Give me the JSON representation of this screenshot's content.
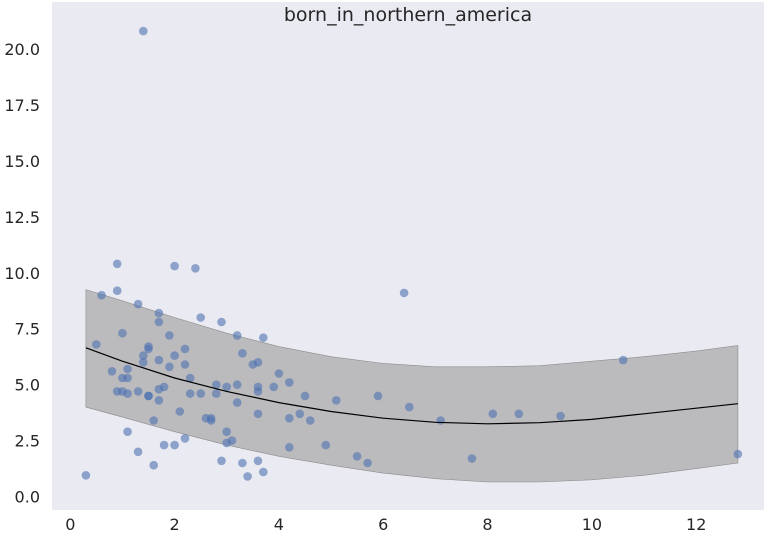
{
  "chart_data": {
    "type": "scatter",
    "title": "born_in_northern_america",
    "xlabel": "",
    "ylabel": "",
    "xlim": [
      -0.35,
      13.3
    ],
    "ylim": [
      -0.6,
      22.1
    ],
    "xticks": [
      0,
      2,
      4,
      6,
      8,
      10,
      12
    ],
    "xtick_labels": [
      "0",
      "2",
      "4",
      "6",
      "8",
      "10",
      "12"
    ],
    "yticks": [
      0.0,
      2.5,
      5.0,
      7.5,
      10.0,
      12.5,
      15.0,
      17.5,
      20.0
    ],
    "ytick_labels": [
      "0.0",
      "2.5",
      "5.0",
      "7.5",
      "10.0",
      "12.5",
      "15.0",
      "17.5",
      "20.0"
    ],
    "grid": false,
    "colors": {
      "background": "#eaeaf2",
      "points": "#4c72b0",
      "band": "#a9a9a9",
      "line": "#000000"
    },
    "points": [
      [
        0.3,
        0.95
      ],
      [
        0.5,
        6.8
      ],
      [
        0.6,
        9.0
      ],
      [
        0.8,
        5.6
      ],
      [
        0.9,
        9.2
      ],
      [
        0.9,
        10.4
      ],
      [
        0.9,
        4.7
      ],
      [
        1.0,
        7.3
      ],
      [
        1.0,
        5.3
      ],
      [
        1.0,
        4.7
      ],
      [
        1.1,
        5.3
      ],
      [
        1.1,
        4.6
      ],
      [
        1.1,
        5.7
      ],
      [
        1.1,
        2.9
      ],
      [
        1.3,
        8.6
      ],
      [
        1.3,
        4.7
      ],
      [
        1.3,
        2.0
      ],
      [
        1.4,
        20.8
      ],
      [
        1.4,
        6.3
      ],
      [
        1.4,
        6.0
      ],
      [
        1.5,
        6.6
      ],
      [
        1.5,
        6.7
      ],
      [
        1.5,
        4.5
      ],
      [
        1.5,
        4.5
      ],
      [
        1.6,
        3.4
      ],
      [
        1.6,
        1.4
      ],
      [
        1.7,
        8.2
      ],
      [
        1.7,
        7.8
      ],
      [
        1.7,
        6.1
      ],
      [
        1.7,
        4.8
      ],
      [
        1.7,
        4.3
      ],
      [
        1.8,
        4.9
      ],
      [
        1.8,
        2.3
      ],
      [
        1.9,
        7.2
      ],
      [
        1.9,
        5.8
      ],
      [
        2.0,
        10.3
      ],
      [
        2.0,
        6.3
      ],
      [
        2.0,
        2.3
      ],
      [
        2.1,
        3.8
      ],
      [
        2.2,
        6.6
      ],
      [
        2.2,
        5.9
      ],
      [
        2.2,
        2.6
      ],
      [
        2.3,
        5.3
      ],
      [
        2.3,
        4.6
      ],
      [
        2.4,
        10.2
      ],
      [
        2.5,
        8.0
      ],
      [
        2.5,
        4.6
      ],
      [
        2.6,
        3.5
      ],
      [
        2.7,
        3.4
      ],
      [
        2.7,
        3.5
      ],
      [
        2.8,
        5.0
      ],
      [
        2.8,
        4.6
      ],
      [
        2.9,
        7.8
      ],
      [
        2.9,
        1.6
      ],
      [
        3.0,
        4.9
      ],
      [
        3.0,
        2.9
      ],
      [
        3.0,
        2.4
      ],
      [
        3.1,
        2.5
      ],
      [
        3.2,
        7.2
      ],
      [
        3.2,
        5.0
      ],
      [
        3.2,
        4.2
      ],
      [
        3.3,
        6.4
      ],
      [
        3.3,
        1.5
      ],
      [
        3.4,
        0.9
      ],
      [
        3.5,
        5.9
      ],
      [
        3.6,
        6.0
      ],
      [
        3.6,
        4.9
      ],
      [
        3.6,
        4.7
      ],
      [
        3.6,
        3.7
      ],
      [
        3.6,
        1.6
      ],
      [
        3.7,
        7.1
      ],
      [
        3.7,
        1.1
      ],
      [
        3.9,
        4.9
      ],
      [
        4.0,
        5.5
      ],
      [
        4.2,
        5.1
      ],
      [
        4.2,
        3.5
      ],
      [
        4.2,
        2.2
      ],
      [
        4.4,
        3.7
      ],
      [
        4.5,
        4.5
      ],
      [
        4.6,
        3.4
      ],
      [
        4.9,
        2.3
      ],
      [
        5.1,
        4.3
      ],
      [
        5.5,
        1.8
      ],
      [
        5.7,
        1.5
      ],
      [
        5.9,
        4.5
      ],
      [
        6.4,
        9.1
      ],
      [
        6.5,
        4.0
      ],
      [
        7.1,
        3.4
      ],
      [
        7.7,
        1.7
      ],
      [
        8.1,
        3.7
      ],
      [
        8.6,
        3.7
      ],
      [
        9.4,
        3.6
      ],
      [
        10.6,
        6.1
      ],
      [
        12.8,
        1.9
      ]
    ],
    "fit_line": {
      "x": [
        0.3,
        1,
        2,
        3,
        4,
        5,
        6,
        7,
        8,
        9,
        10,
        11,
        12,
        12.8
      ],
      "y": [
        6.65,
        6.05,
        5.3,
        4.7,
        4.2,
        3.8,
        3.5,
        3.32,
        3.25,
        3.3,
        3.45,
        3.7,
        3.95,
        4.15
      ]
    },
    "band": {
      "x": [
        0.3,
        1,
        2,
        3,
        4,
        5,
        6,
        7,
        8,
        9,
        10,
        11,
        12,
        12.8
      ],
      "lower": [
        4.0,
        3.55,
        2.9,
        2.3,
        1.8,
        1.4,
        1.05,
        0.8,
        0.65,
        0.65,
        0.75,
        0.95,
        1.25,
        1.5
      ],
      "upper": [
        9.25,
        8.75,
        8.0,
        7.3,
        6.7,
        6.25,
        5.95,
        5.8,
        5.8,
        5.85,
        6.05,
        6.25,
        6.5,
        6.75
      ]
    }
  }
}
